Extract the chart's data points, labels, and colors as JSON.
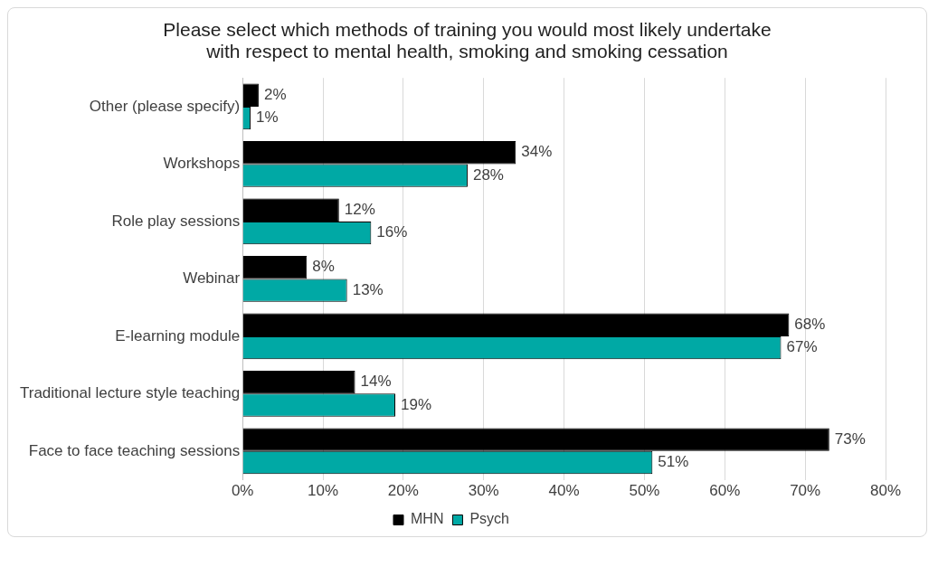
{
  "chart_data": {
    "type": "bar",
    "orientation": "horizontal",
    "title": "Please select which methods of training you would most likely undertake with respect to mental health, smoking and smoking cessation",
    "categories": [
      "Other (please specify)",
      "Workshops",
      "Role play sessions",
      "Webinar",
      "E-learning module",
      "Traditional lecture style teaching",
      "Face to face teaching sessions"
    ],
    "series": [
      {
        "name": "MHN",
        "color": "#000000",
        "values": [
          2,
          34,
          12,
          8,
          68,
          14,
          73
        ],
        "value_labels": [
          "2%",
          "34%",
          "12%",
          "8%",
          "68%",
          "14%",
          "73%"
        ]
      },
      {
        "name": "Psych",
        "color": "#00a9a5",
        "values": [
          1,
          28,
          16,
          13,
          67,
          19,
          51
        ],
        "value_labels": [
          "1%",
          "28%",
          "16%",
          "13%",
          "67%",
          "19%",
          "51%"
        ]
      }
    ],
    "xlim": [
      0,
      80
    ],
    "xticks": [
      {
        "value": 0,
        "label": "0%"
      },
      {
        "value": 10,
        "label": "10%"
      },
      {
        "value": 20,
        "label": "20%"
      },
      {
        "value": 30,
        "label": "30%"
      },
      {
        "value": 40,
        "label": "40%"
      },
      {
        "value": 50,
        "label": "50%"
      },
      {
        "value": 60,
        "label": "60%"
      },
      {
        "value": 70,
        "label": "70%"
      },
      {
        "value": 80,
        "label": "80%"
      }
    ],
    "grid": "x",
    "legend": "bottom"
  }
}
